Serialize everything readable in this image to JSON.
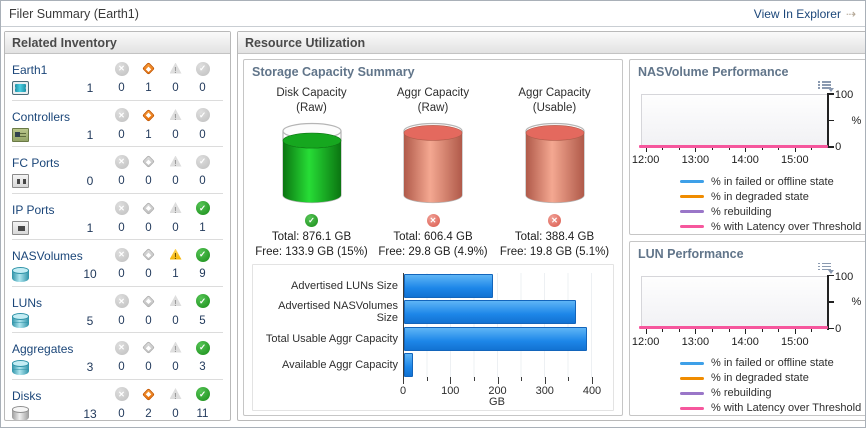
{
  "title_bar": {
    "title": "Filer Summary (Earth1)",
    "action_label": "View In Explorer"
  },
  "related_inventory": {
    "header": "Related Inventory",
    "rows": [
      {
        "label": "Earth1",
        "icon": "filer-icon",
        "count": "1",
        "statuses": [
          {
            "icon": "error-icon",
            "active": false,
            "value": "0"
          },
          {
            "icon": "suboptimal-icon",
            "active": true,
            "value": "1"
          },
          {
            "icon": "warning-icon",
            "active": false,
            "value": "0"
          },
          {
            "icon": "ok-icon",
            "active": false,
            "value": "0"
          }
        ]
      },
      {
        "label": "Controllers",
        "icon": "controller-icon",
        "count": "1",
        "statuses": [
          {
            "icon": "error-icon",
            "active": false,
            "value": "0"
          },
          {
            "icon": "suboptimal-icon",
            "active": true,
            "value": "1"
          },
          {
            "icon": "warning-icon",
            "active": false,
            "value": "0"
          },
          {
            "icon": "ok-icon",
            "active": false,
            "value": "0"
          }
        ]
      },
      {
        "label": "FC Ports",
        "icon": "fc-port-icon",
        "count": "0",
        "statuses": [
          {
            "icon": "error-icon",
            "active": false,
            "value": "0"
          },
          {
            "icon": "suboptimal-icon",
            "active": false,
            "value": "0"
          },
          {
            "icon": "warning-icon",
            "active": false,
            "value": "0"
          },
          {
            "icon": "ok-icon",
            "active": false,
            "value": "0"
          }
        ]
      },
      {
        "label": "IP Ports",
        "icon": "ip-port-icon",
        "count": "1",
        "statuses": [
          {
            "icon": "error-icon",
            "active": false,
            "value": "0"
          },
          {
            "icon": "suboptimal-icon",
            "active": false,
            "value": "0"
          },
          {
            "icon": "warning-icon",
            "active": false,
            "value": "0"
          },
          {
            "icon": "ok-icon",
            "active": true,
            "value": "1"
          }
        ]
      },
      {
        "label": "NASVolumes",
        "icon": "nas-volume-icon",
        "count": "10",
        "statuses": [
          {
            "icon": "error-icon",
            "active": false,
            "value": "0"
          },
          {
            "icon": "suboptimal-icon",
            "active": false,
            "value": "0"
          },
          {
            "icon": "warning-icon",
            "active": true,
            "value": "1"
          },
          {
            "icon": "ok-icon",
            "active": true,
            "value": "9"
          }
        ]
      },
      {
        "label": "LUNs",
        "icon": "lun-icon",
        "count": "5",
        "statuses": [
          {
            "icon": "error-icon",
            "active": false,
            "value": "0"
          },
          {
            "icon": "suboptimal-icon",
            "active": false,
            "value": "0"
          },
          {
            "icon": "warning-icon",
            "active": false,
            "value": "0"
          },
          {
            "icon": "ok-icon",
            "active": true,
            "value": "5"
          }
        ]
      },
      {
        "label": "Aggregates",
        "icon": "aggregate-icon",
        "count": "3",
        "statuses": [
          {
            "icon": "error-icon",
            "active": false,
            "value": "0"
          },
          {
            "icon": "suboptimal-icon",
            "active": false,
            "value": "0"
          },
          {
            "icon": "warning-icon",
            "active": false,
            "value": "0"
          },
          {
            "icon": "ok-icon",
            "active": true,
            "value": "3"
          }
        ]
      },
      {
        "label": "Disks",
        "icon": "disk-icon",
        "count": "13",
        "statuses": [
          {
            "icon": "error-icon",
            "active": false,
            "value": "0"
          },
          {
            "icon": "suboptimal-icon",
            "active": true,
            "value": "2"
          },
          {
            "icon": "warning-icon",
            "active": false,
            "value": "0"
          },
          {
            "icon": "ok-icon",
            "active": true,
            "value": "11"
          }
        ]
      }
    ]
  },
  "resource_utilization": {
    "header": "Resource Utilization"
  },
  "storage_capacity": {
    "header": "Storage Capacity Summary",
    "gauges": [
      {
        "title": "Disk Capacity",
        "subtitle": "(Raw)",
        "status": "ok",
        "fill_percent": 85,
        "color_scheme": "green",
        "total": "Total: 876.1 GB",
        "free": "Free: 133.9 GB (15%)"
      },
      {
        "title": "Aggr Capacity",
        "subtitle": "(Raw)",
        "status": "error",
        "fill_percent": 97,
        "color_scheme": "red",
        "total": "Total: 606.4 GB",
        "free": "Free: 29.8 GB (4.9%)"
      },
      {
        "title": "Aggr Capacity",
        "subtitle": "(Usable)",
        "status": "error",
        "fill_percent": 97,
        "color_scheme": "red",
        "total": "Total: 388.4 GB",
        "free": "Free: 19.8 GB (5.1%)"
      }
    ]
  },
  "chart_data": [
    {
      "type": "bar",
      "orientation": "horizontal",
      "categories": [
        "Advertised LUNs Size",
        "Advertised NASVolumes Size",
        "Total Usable Aggr Capacity",
        "Available Aggr Capacity"
      ],
      "values": [
        190,
        365,
        388.4,
        19.8
      ],
      "xlabel": "GB",
      "xlim": [
        0,
        400
      ],
      "xticks": [
        0,
        100,
        200,
        300,
        400
      ],
      "minor_tick_step": 50,
      "bar_color": "#1d86e8"
    },
    {
      "type": "line",
      "title": "NASVolume Performance",
      "x_ticks": [
        "12:00",
        "13:00",
        "14:00",
        "15:00"
      ],
      "ylim": [
        0,
        100
      ],
      "ylabel": "%",
      "legend_position": "bottom",
      "series": [
        {
          "name": "% in failed or offline state",
          "color": "#3ea0e8",
          "values": [
            0,
            0,
            0,
            0
          ]
        },
        {
          "name": "% in degraded state",
          "color": "#f08c00",
          "values": [
            0,
            0,
            0,
            0
          ]
        },
        {
          "name": "% rebuilding",
          "color": "#9a76c8",
          "values": [
            0,
            0,
            0,
            0
          ]
        },
        {
          "name": "% with Latency over Threshold",
          "color": "#f6579d",
          "values": [
            0,
            0,
            0,
            0
          ]
        }
      ]
    },
    {
      "type": "line",
      "title": "LUN Performance",
      "x_ticks": [
        "12:00",
        "13:00",
        "14:00",
        "15:00"
      ],
      "ylim": [
        0,
        100
      ],
      "ylabel": "%",
      "legend_position": "bottom",
      "series": [
        {
          "name": "% in failed or offline state",
          "color": "#3ea0e8",
          "values": [
            0,
            0,
            0,
            0
          ]
        },
        {
          "name": "% in degraded state",
          "color": "#f08c00",
          "values": [
            0,
            0,
            0,
            0
          ]
        },
        {
          "name": "% rebuilding",
          "color": "#9a76c8",
          "values": [
            0,
            0,
            0,
            0
          ]
        },
        {
          "name": "% with Latency over Threshold",
          "color": "#f6579d",
          "values": [
            0,
            0,
            0,
            0
          ]
        }
      ]
    }
  ]
}
